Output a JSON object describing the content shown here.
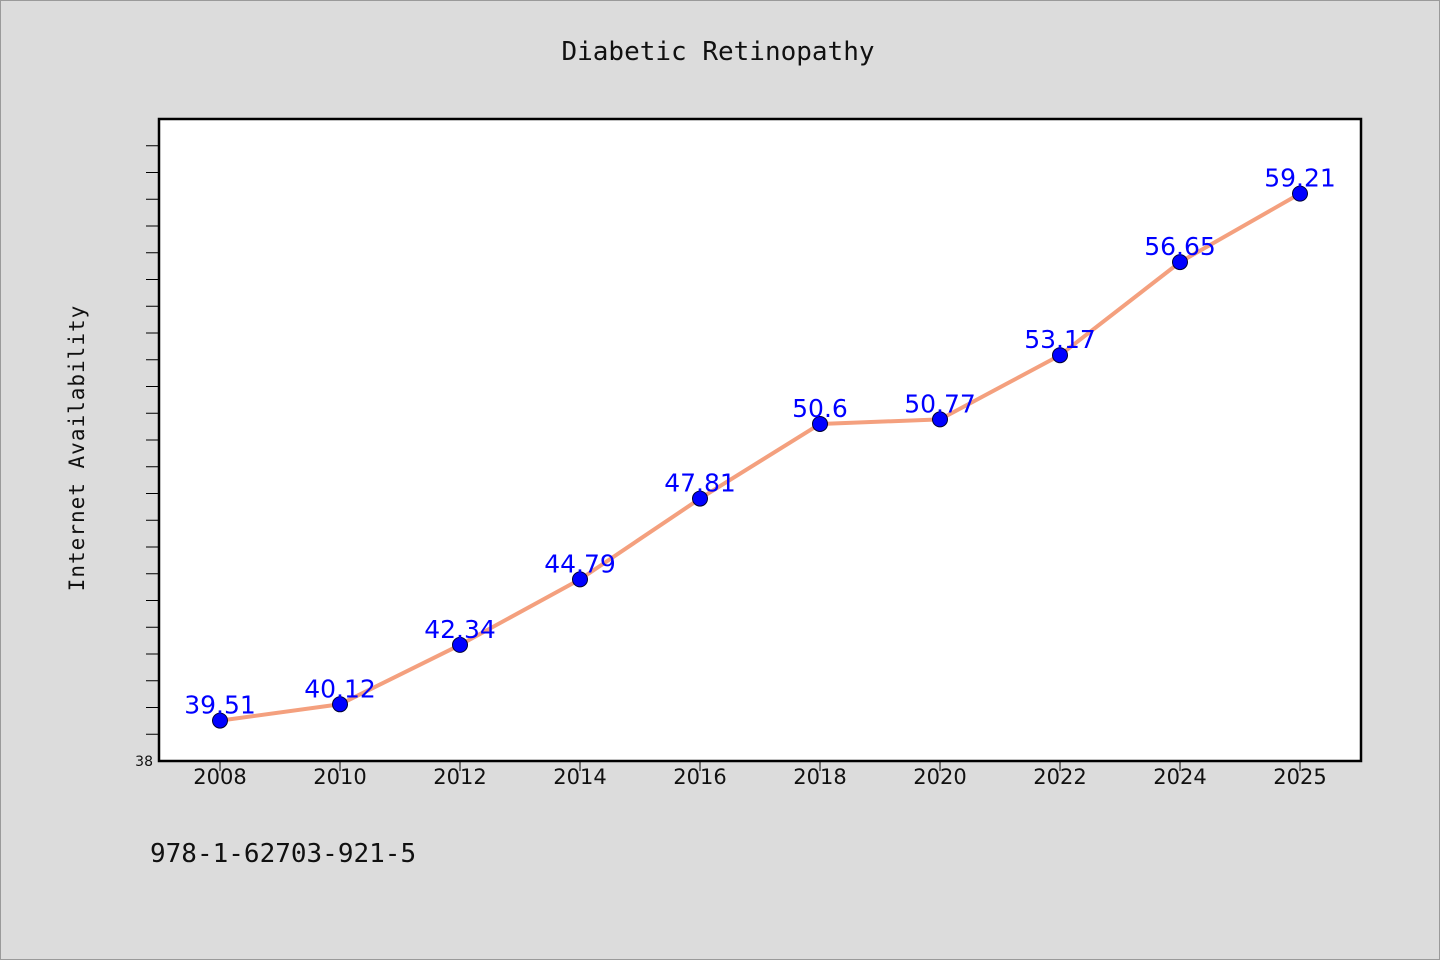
{
  "chart_data": {
    "type": "line",
    "title": "Diabetic Retinopathy",
    "xlabel": "",
    "ylabel": "Internet Availability",
    "x": [
      "2008",
      "2010",
      "2012",
      "2014",
      "2016",
      "2018",
      "2020",
      "2022",
      "2024",
      "2025"
    ],
    "series": [
      {
        "values": [
          39.51,
          40.12,
          42.34,
          44.79,
          47.81,
          50.6,
          50.77,
          53.17,
          56.65,
          59.21
        ],
        "data_labels": [
          "39.51",
          "40.12",
          "42.34",
          "44.79",
          "47.81",
          "50.6",
          "50.77",
          "53.17",
          "56.65",
          "59.21"
        ],
        "line_color": "#f4a07e",
        "marker_color": "#0000ff"
      }
    ],
    "ylim": [
      38,
      62
    ],
    "y_tick_labels": [
      "38"
    ],
    "grid": false,
    "legend": "none"
  },
  "footnote": "978-1-62703-921-5",
  "colors": {
    "background": "#dcdcdc",
    "plot_background": "#ffffff",
    "line": "#f4a07e",
    "marker": "#0000ff",
    "data_label": "#0000ff"
  }
}
